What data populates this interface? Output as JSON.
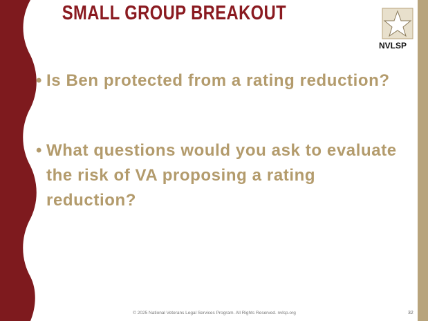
{
  "header": {
    "title": "SMALL GROUP BREAKOUT",
    "logo": "NVLSP"
  },
  "bullets": [
    "Is Ben protected from a rating reduction?",
    "What questions would you ask to evaluate the risk of VA proposing a rating reduction?"
  ],
  "footer": {
    "text": "© 2025 National Veterans Legal Services Program. All Rights Reserved. nvlsp.org",
    "page": "32"
  }
}
